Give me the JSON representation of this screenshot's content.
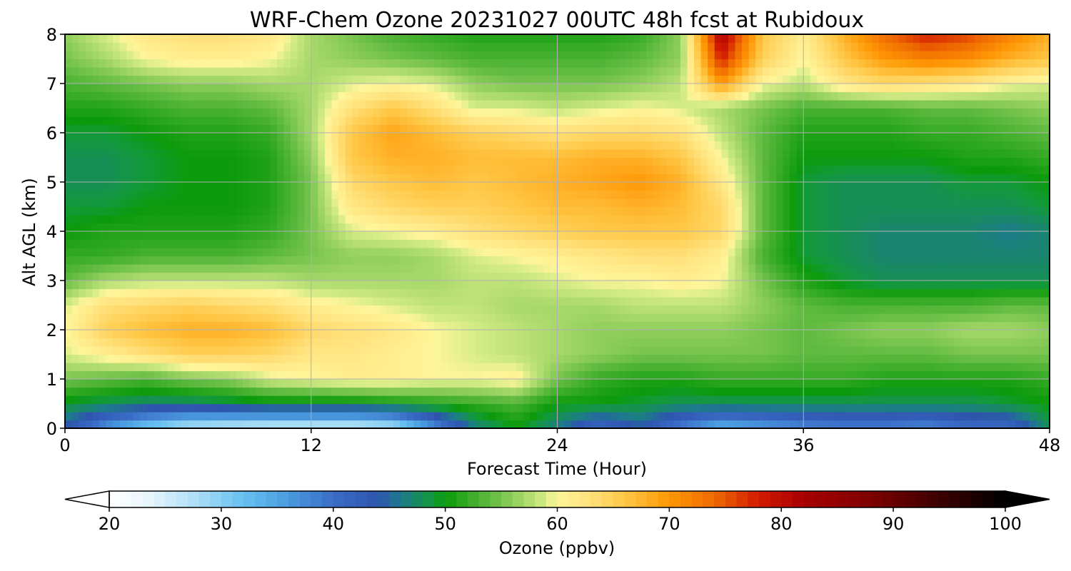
{
  "chart_data": {
    "type": "heatmap",
    "title": "WRF-Chem Ozone  20231027 00UTC 48h fcst at Rubidoux",
    "xlabel": "Forecast Time (Hour)",
    "ylabel": "Alt AGL (km)",
    "xlim": [
      0,
      48
    ],
    "ylim": [
      0,
      8
    ],
    "x_ticks": [
      "0",
      "12",
      "24",
      "36",
      "48"
    ],
    "y_ticks": [
      "0",
      "1",
      "2",
      "3",
      "4",
      "5",
      "6",
      "7",
      "8"
    ],
    "grid": true,
    "x": [
      0,
      2,
      4,
      6,
      8,
      10,
      12,
      14,
      16,
      18,
      20,
      22,
      24,
      26,
      28,
      30,
      32,
      34,
      36,
      38,
      40,
      42,
      44,
      46,
      48
    ],
    "y": [
      0,
      0.5,
      1,
      1.5,
      2,
      2.5,
      3,
      3.5,
      4,
      4.5,
      5,
      5.5,
      6,
      6.5,
      7,
      7.5,
      8
    ],
    "z_units": "ppbv",
    "z": [
      [
        44,
        36,
        30,
        26,
        25,
        24,
        24,
        24,
        26,
        36,
        46,
        50,
        46,
        40,
        44,
        38,
        33,
        35,
        37,
        38,
        38,
        37,
        40,
        40,
        48
      ],
      [
        49,
        48,
        47,
        47,
        48,
        49,
        49,
        49,
        50,
        51,
        52,
        53,
        50,
        50,
        49,
        48,
        48,
        48,
        48,
        48,
        48,
        48,
        48,
        49,
        50
      ],
      [
        55,
        54,
        53,
        55,
        56,
        59,
        60,
        61,
        61,
        60,
        60,
        61,
        55,
        52,
        51,
        51,
        52,
        52,
        52,
        52,
        51,
        51,
        51,
        51,
        52
      ],
      [
        59,
        61,
        63,
        65,
        65,
        64,
        62,
        62,
        61,
        60,
        59,
        58,
        57,
        56,
        55,
        55,
        55,
        55,
        54,
        54,
        54,
        54,
        55,
        55,
        55
      ],
      [
        60,
        65,
        67,
        68,
        68,
        67,
        64,
        63,
        62,
        60,
        59,
        58,
        57,
        56,
        56,
        56,
        56,
        55,
        54,
        55,
        56,
        56,
        57,
        57,
        56
      ],
      [
        59,
        63,
        64,
        65,
        64,
        63,
        61,
        60,
        59,
        58,
        58,
        57,
        57,
        57,
        58,
        58,
        58,
        56,
        54,
        53,
        53,
        53,
        53,
        54,
        54
      ],
      [
        54,
        57,
        58,
        58,
        58,
        58,
        57,
        57,
        57,
        57,
        58,
        58,
        59,
        60,
        60,
        61,
        60,
        55,
        51,
        49,
        48,
        48,
        48,
        48,
        48
      ],
      [
        52,
        52,
        53,
        53,
        53,
        54,
        55,
        56,
        56,
        57,
        59,
        60,
        61,
        62,
        63,
        63,
        61,
        53,
        49,
        48,
        47,
        47,
        47,
        47,
        47
      ],
      [
        50,
        51,
        51,
        51,
        51,
        52,
        55,
        59,
        60,
        61,
        63,
        64,
        65,
        66,
        66,
        66,
        64,
        54,
        49,
        48,
        47,
        47,
        47,
        46,
        47
      ],
      [
        49,
        49,
        50,
        50,
        50,
        51,
        55,
        62,
        64,
        65,
        65,
        66,
        67,
        67,
        68,
        67,
        64,
        54,
        49,
        48,
        48,
        48,
        48,
        48,
        49
      ],
      [
        48,
        48,
        49,
        50,
        50,
        51,
        55,
        64,
        66,
        67,
        66,
        67,
        68,
        69,
        70,
        68,
        62,
        54,
        49,
        48,
        48,
        48,
        49,
        49,
        50
      ],
      [
        48,
        48,
        49,
        50,
        50,
        51,
        56,
        66,
        68,
        68,
        67,
        67,
        67,
        68,
        68,
        66,
        60,
        54,
        50,
        50,
        50,
        50,
        51,
        51,
        52
      ],
      [
        49,
        49,
        50,
        51,
        51,
        52,
        57,
        66,
        69,
        67,
        65,
        64,
        63,
        64,
        64,
        63,
        58,
        54,
        51,
        51,
        51,
        52,
        52,
        53,
        54
      ],
      [
        51,
        51,
        52,
        53,
        53,
        54,
        57,
        63,
        66,
        63,
        59,
        59,
        58,
        59,
        60,
        59,
        57,
        55,
        53,
        53,
        53,
        54,
        54,
        55,
        56
      ],
      [
        53,
        54,
        55,
        56,
        56,
        57,
        57,
        59,
        60,
        59,
        56,
        55,
        55,
        55,
        56,
        58,
        70,
        60,
        58,
        62,
        64,
        63,
        62,
        60,
        59
      ],
      [
        55,
        57,
        60,
        61,
        61,
        60,
        57,
        56,
        55,
        54,
        53,
        53,
        53,
        53,
        54,
        56,
        78,
        65,
        60,
        66,
        70,
        72,
        71,
        68,
        66
      ],
      [
        56,
        59,
        62,
        63,
        63,
        62,
        57,
        55,
        53,
        52,
        51,
        51,
        51,
        51,
        52,
        56,
        82,
        66,
        61,
        68,
        74,
        78,
        76,
        72,
        68
      ]
    ],
    "colorbar": {
      "label": "Ozone  (ppbv)",
      "min": 20,
      "max": 100,
      "ticks": [
        "20",
        "30",
        "40",
        "50",
        "60",
        "70",
        "80",
        "90",
        "100"
      ],
      "extend": "both"
    },
    "colormap_stops": [
      [
        20,
        "#ffffff"
      ],
      [
        24,
        "#e3f3fc"
      ],
      [
        28,
        "#a9dcf6"
      ],
      [
        32,
        "#66bff0"
      ],
      [
        36,
        "#4a9bdf"
      ],
      [
        40,
        "#3a6cc6"
      ],
      [
        44,
        "#2e55ae"
      ],
      [
        46,
        "#1e7a8c"
      ],
      [
        49,
        "#129a38"
      ],
      [
        50,
        "#0b9a0b"
      ],
      [
        54,
        "#5fba40"
      ],
      [
        57,
        "#a7d86a"
      ],
      [
        59,
        "#d6ec87"
      ],
      [
        60,
        "#fff59a"
      ],
      [
        63,
        "#ffe079"
      ],
      [
        66,
        "#ffc847"
      ],
      [
        70,
        "#ff9805"
      ],
      [
        74,
        "#ef6a00"
      ],
      [
        78,
        "#d21a00"
      ],
      [
        82,
        "#a80000"
      ],
      [
        88,
        "#7d0000"
      ],
      [
        94,
        "#3d0000"
      ],
      [
        100,
        "#000000"
      ]
    ]
  }
}
